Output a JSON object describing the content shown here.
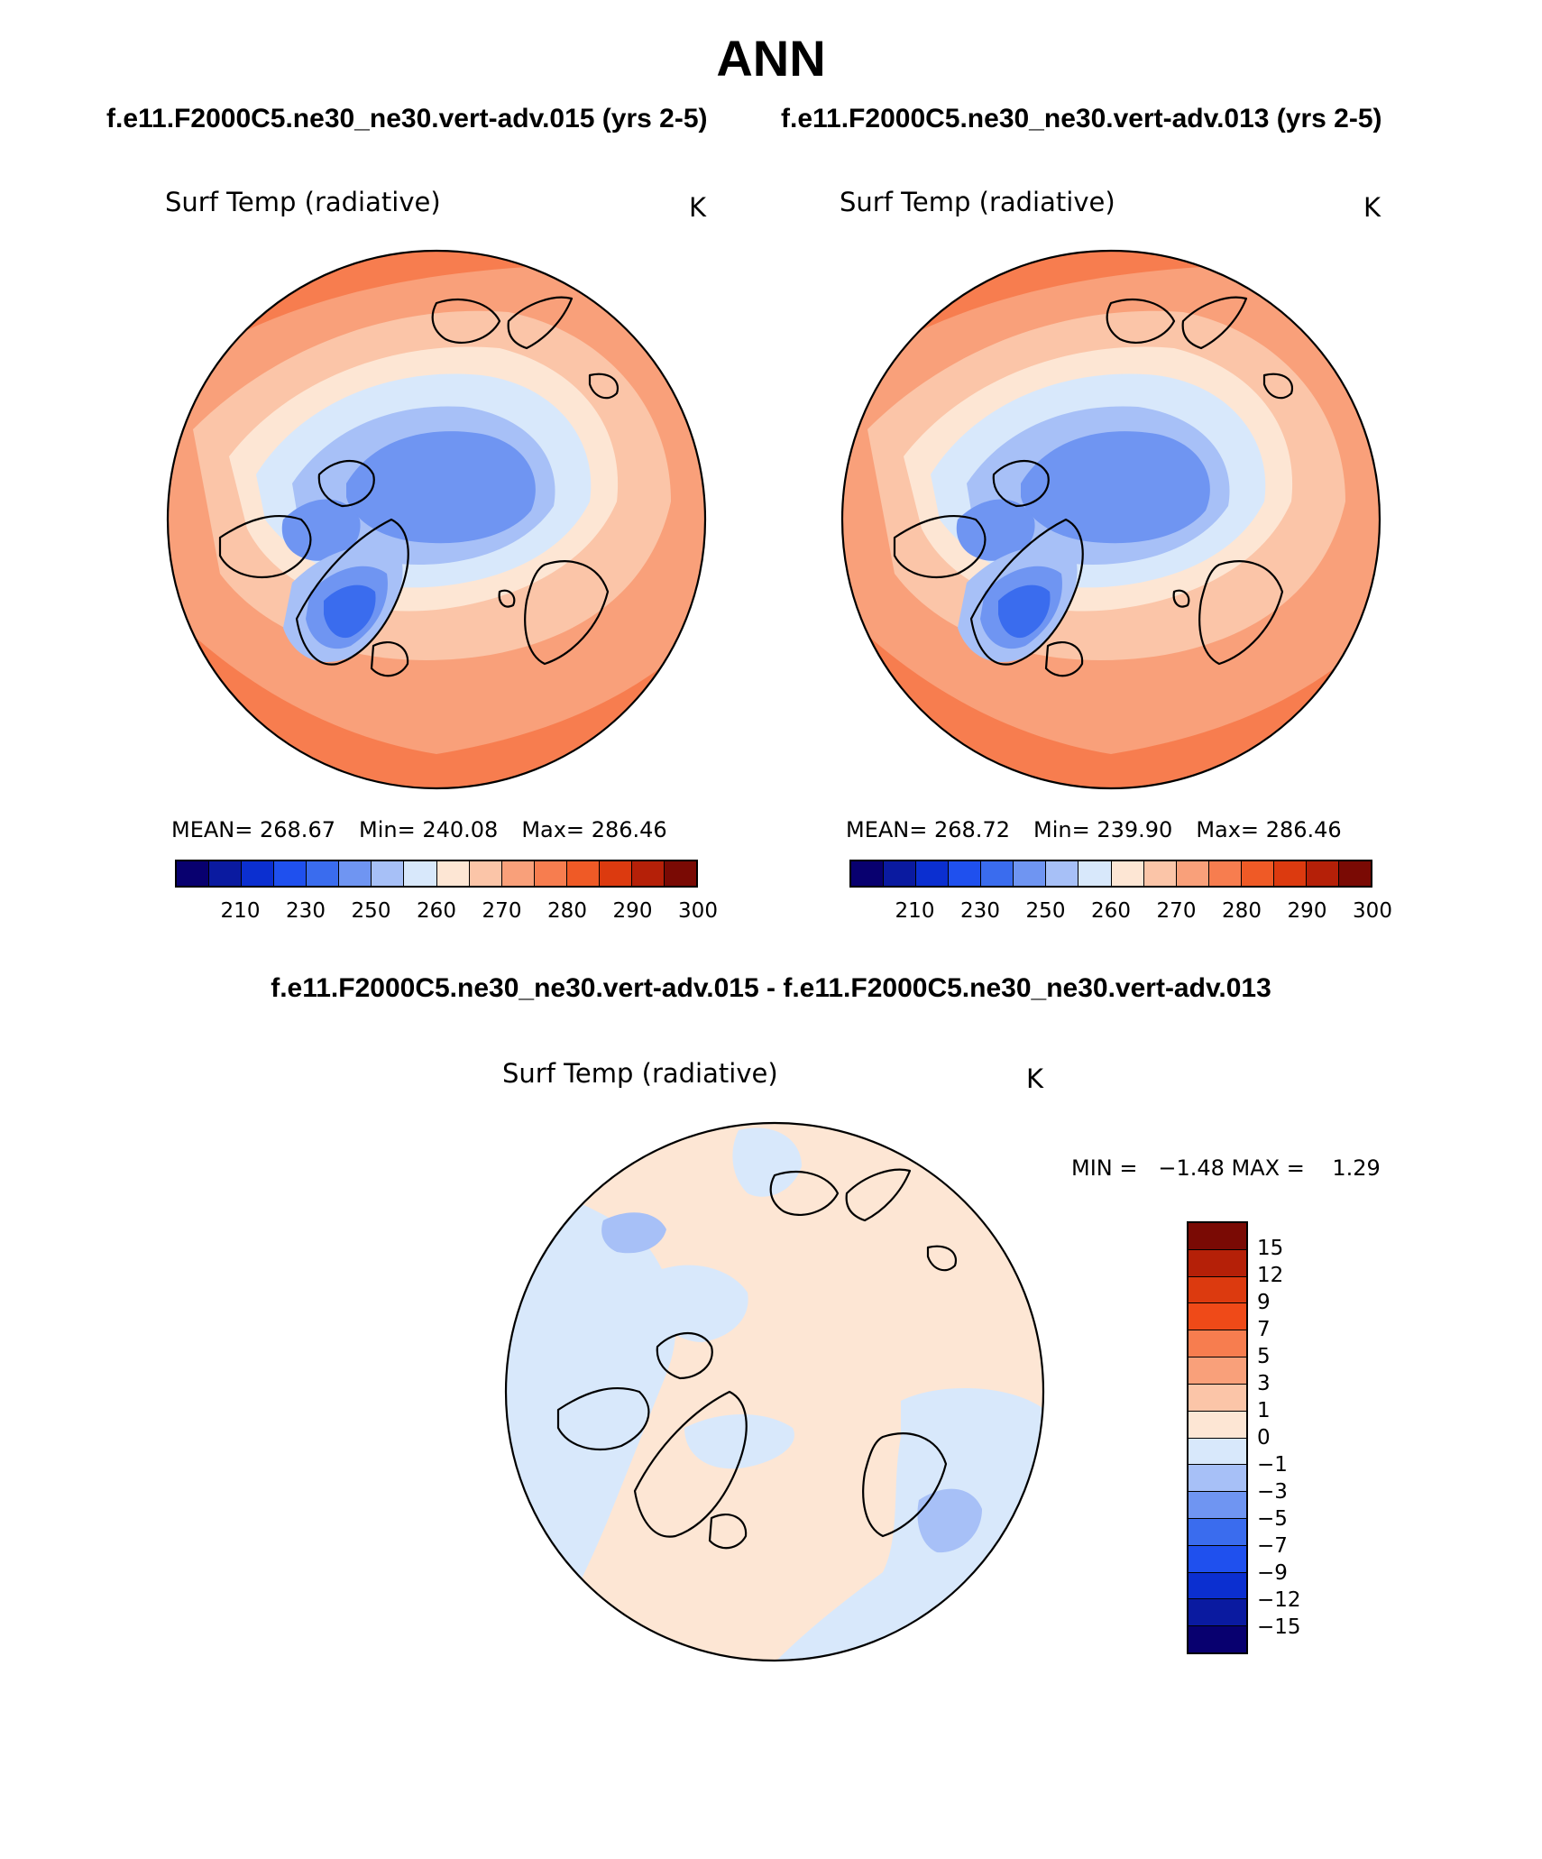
{
  "header": {
    "title": "ANN",
    "case_left": "f.e11.F2000C5.ne30_ne30.vert-adv.015 (yrs 2-5)",
    "case_right": "f.e11.F2000C5.ne30_ne30.vert-adv.013 (yrs 2-5)",
    "diff_title": "f.e11.F2000C5.ne30_ne30.vert-adv.015 - f.e11.F2000C5.ne30_ne30.vert-adv.013"
  },
  "panels": {
    "left": {
      "variable": "Surf Temp (radiative)",
      "units": "K",
      "mean_label": "MEAN=",
      "mean": "268.67",
      "min_label": "Min=",
      "min": "240.08",
      "max_label": "Max=",
      "max": "286.46"
    },
    "right": {
      "variable": "Surf Temp (radiative)",
      "units": "K",
      "mean_label": "MEAN=",
      "mean": "268.72",
      "min_label": "Min=",
      "min": "239.90",
      "max_label": "Max=",
      "max": "286.46"
    },
    "diff": {
      "variable": "Surf Temp (radiative)",
      "units": "K",
      "minmax": "MIN =   −1.48 MAX =    1.29"
    }
  },
  "colorbar_abs": {
    "ticks": [
      "210",
      "230",
      "250",
      "260",
      "270",
      "280",
      "290",
      "300"
    ],
    "colors": [
      "#08006f",
      "#0a1aa0",
      "#0b2fd0",
      "#1f50ee",
      "#3a6cee",
      "#6f95f2",
      "#a7c0f7",
      "#d8e8fb",
      "#fde6d4",
      "#fbc5a8",
      "#f9a07a",
      "#f77d4f",
      "#ef5a26",
      "#dc3a0f",
      "#b52008",
      "#7a0a04"
    ]
  },
  "colorbar_diff": {
    "ticks": [
      "15",
      "12",
      "9",
      "7",
      "5",
      "3",
      "1",
      "0",
      "−1",
      "−3",
      "−5",
      "−7",
      "−9",
      "−12",
      "−15"
    ],
    "colors": [
      "#7a0a04",
      "#b52008",
      "#dc3a0f",
      "#ef4a18",
      "#f77d4f",
      "#f9a07a",
      "#fbc5a8",
      "#fde6d4",
      "#d8e8fb",
      "#a7c0f7",
      "#6f95f2",
      "#3a6cee",
      "#1f50ee",
      "#0b2fd0",
      "#0a1aa0",
      "#08006f"
    ]
  },
  "map_colors": {
    "ocean_warm": "#f77d4f",
    "warm": "#f9a07a",
    "mild": "#fbc5a8",
    "cool": "#fde6d4",
    "cold1": "#d8e8fb",
    "cold2": "#a7c0f7",
    "cold3": "#6f95f2",
    "cold4": "#3a6cee",
    "diff_pos": "#fde6d4",
    "diff_neg": "#d8e8fb",
    "diff_neg2": "#a7c0f7",
    "coast": "#000000"
  }
}
